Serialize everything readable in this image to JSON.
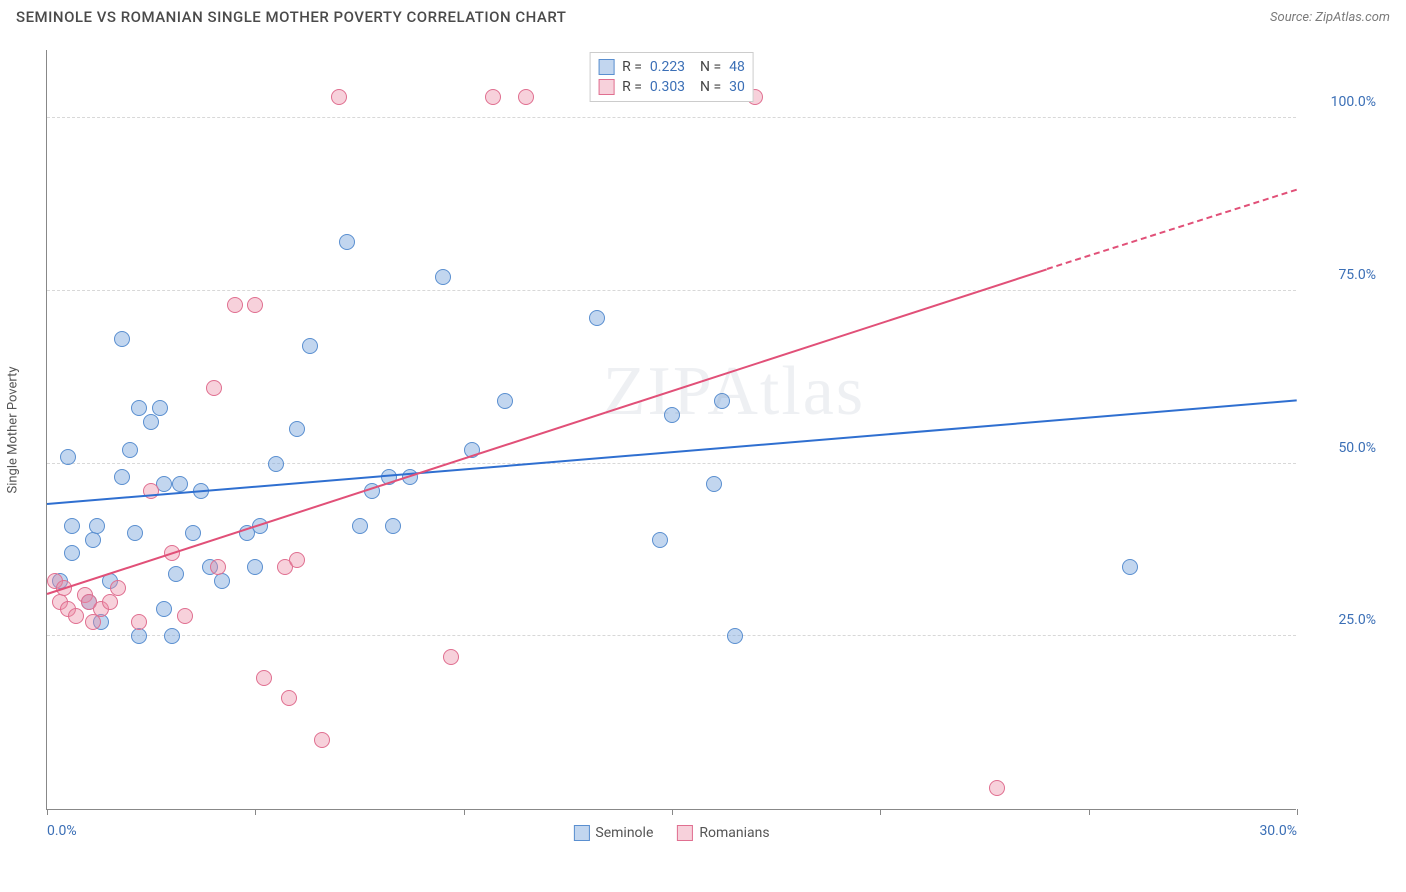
{
  "title": "SEMINOLE VS ROMANIAN SINGLE MOTHER POVERTY CORRELATION CHART",
  "source": "Source: ZipAtlas.com",
  "watermark": "ZIPAtlas",
  "yaxis_title": "Single Mother Poverty",
  "chart": {
    "type": "scatter",
    "xlim": [
      0,
      30
    ],
    "ylim": [
      0,
      110
    ],
    "x_ticks": [
      0,
      5,
      10,
      15,
      20,
      25,
      30
    ],
    "x_tick_labels": {
      "0": "0.0%",
      "30": "30.0%"
    },
    "y_gridlines": [
      25,
      50,
      75,
      100
    ],
    "y_tick_labels": {
      "25": "25.0%",
      "50": "50.0%",
      "75": "75.0%",
      "100": "100.0%"
    },
    "background_color": "#ffffff",
    "grid_color": "#d8d8d8",
    "axis_color": "#888888",
    "tick_label_color": "#3b6fb6",
    "marker_radius": 8,
    "series": [
      {
        "name": "Seminole",
        "fill": "rgba(120,165,220,0.45)",
        "stroke": "#5a8fd0",
        "line_color": "#2f6fd0",
        "R": "0.223",
        "N": "48",
        "trend": {
          "x1": 0,
          "y1": 44,
          "x2": 30,
          "y2": 59
        },
        "points": [
          [
            0.3,
            33
          ],
          [
            0.5,
            51
          ],
          [
            0.6,
            41
          ],
          [
            0.6,
            37
          ],
          [
            1.0,
            30
          ],
          [
            1.1,
            39
          ],
          [
            1.2,
            41
          ],
          [
            1.3,
            27
          ],
          [
            1.5,
            33
          ],
          [
            1.8,
            48
          ],
          [
            1.8,
            68
          ],
          [
            2.0,
            52
          ],
          [
            2.1,
            40
          ],
          [
            2.2,
            58
          ],
          [
            2.2,
            25
          ],
          [
            2.5,
            56
          ],
          [
            2.7,
            58
          ],
          [
            2.8,
            29
          ],
          [
            2.8,
            47
          ],
          [
            3.0,
            25
          ],
          [
            3.1,
            34
          ],
          [
            3.2,
            47
          ],
          [
            3.5,
            40
          ],
          [
            3.7,
            46
          ],
          [
            3.9,
            35
          ],
          [
            4.2,
            33
          ],
          [
            4.8,
            40
          ],
          [
            5.0,
            35
          ],
          [
            5.1,
            41
          ],
          [
            5.5,
            50
          ],
          [
            6.0,
            55
          ],
          [
            6.3,
            67
          ],
          [
            7.2,
            82
          ],
          [
            7.5,
            41
          ],
          [
            7.8,
            46
          ],
          [
            8.2,
            48
          ],
          [
            8.3,
            41
          ],
          [
            8.7,
            48
          ],
          [
            9.5,
            77
          ],
          [
            10.2,
            52
          ],
          [
            11,
            59
          ],
          [
            13.2,
            71
          ],
          [
            14.7,
            39
          ],
          [
            15,
            57
          ],
          [
            16,
            47
          ],
          [
            16.2,
            59
          ],
          [
            16.5,
            25
          ],
          [
            26,
            35
          ]
        ]
      },
      {
        "name": "Romanians",
        "fill": "rgba(235,140,165,0.40)",
        "stroke": "#e06f90",
        "line_color": "#e15078",
        "R": "0.303",
        "N": "30",
        "trend_solid": {
          "x1": 0,
          "y1": 31,
          "x2": 24,
          "y2": 78
        },
        "trend_dash": {
          "x1": 24,
          "y1": 78,
          "x2": 30,
          "y2": 89.5
        },
        "points": [
          [
            0.2,
            33
          ],
          [
            0.3,
            30
          ],
          [
            0.4,
            32
          ],
          [
            0.5,
            29
          ],
          [
            0.7,
            28
          ],
          [
            0.9,
            31
          ],
          [
            1.0,
            30
          ],
          [
            1.1,
            27
          ],
          [
            1.3,
            29
          ],
          [
            1.5,
            30
          ],
          [
            1.7,
            32
          ],
          [
            2.2,
            27
          ],
          [
            2.5,
            46
          ],
          [
            3.0,
            37
          ],
          [
            3.3,
            28
          ],
          [
            4.0,
            61
          ],
          [
            4.1,
            35
          ],
          [
            4.5,
            73
          ],
          [
            5.0,
            73
          ],
          [
            5.2,
            19
          ],
          [
            5.7,
            35
          ],
          [
            5.8,
            16
          ],
          [
            6.0,
            36
          ],
          [
            6.6,
            10
          ],
          [
            7.0,
            103
          ],
          [
            9.7,
            22
          ],
          [
            10.7,
            103
          ],
          [
            11.5,
            103
          ],
          [
            17,
            103
          ],
          [
            22.8,
            3
          ]
        ]
      }
    ]
  },
  "legend_bottom": [
    {
      "label": "Seminole",
      "fill": "rgba(120,165,220,0.45)",
      "stroke": "#5a8fd0"
    },
    {
      "label": "Romanians",
      "fill": "rgba(235,140,165,0.40)",
      "stroke": "#e06f90"
    }
  ]
}
